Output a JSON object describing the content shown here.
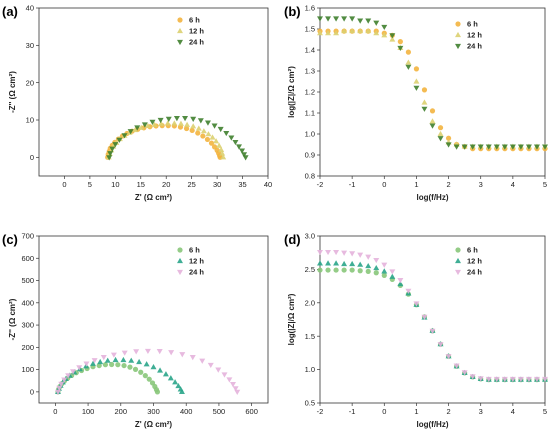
{
  "chart_data": [
    {
      "panel": "(a)",
      "type": "scatter",
      "xlabel": "Z' (Ω cm²)",
      "ylabel": "-Z'' (Ω cm²)",
      "xlim": [
        -5,
        40
      ],
      "ylim": [
        -5,
        40
      ],
      "xticks": [
        "0",
        "5",
        "10",
        "15",
        "20",
        "25",
        "30",
        "35",
        "40"
      ],
      "yticks": [
        "0",
        "10",
        "20",
        "30",
        "40"
      ],
      "legend_position": "top-right",
      "series": [
        {
          "name": "6 h",
          "color": "#f3b43f",
          "marker": "circle",
          "x": [
            8.5,
            8.6,
            8.8,
            9.0,
            9.4,
            9.9,
            10.6,
            11.4,
            12.3,
            13.3,
            14.4,
            15.6,
            16.8,
            18.0,
            19.2,
            20.4,
            21.6,
            22.8,
            24.0,
            25.1,
            26.2,
            27.2,
            28.1,
            28.9,
            29.5,
            30.0,
            30.3,
            30.5,
            30.6
          ],
          "y": [
            0.0,
            0.8,
            1.6,
            2.4,
            3.2,
            4.0,
            4.9,
            5.7,
            6.4,
            7.0,
            7.5,
            7.9,
            8.2,
            8.4,
            8.5,
            8.5,
            8.4,
            8.1,
            7.7,
            7.2,
            6.5,
            5.7,
            4.8,
            3.8,
            2.8,
            1.9,
            1.1,
            0.4,
            0.0
          ]
        },
        {
          "name": "12 h",
          "color": "#dcd070",
          "marker": "triangle-up",
          "x": [
            8.7,
            8.9,
            9.2,
            9.6,
            10.2,
            10.9,
            11.8,
            12.8,
            13.9,
            15.1,
            16.4,
            17.7,
            19.0,
            20.3,
            21.6,
            22.9,
            24.1,
            25.3,
            26.4,
            27.4,
            28.3,
            29.1,
            29.8,
            30.4,
            30.8,
            31.0,
            31.2
          ],
          "y": [
            0.0,
            0.9,
            1.9,
            2.9,
            3.9,
            4.9,
            5.8,
            6.6,
            7.3,
            7.9,
            8.4,
            8.7,
            9.0,
            9.1,
            9.1,
            9.0,
            8.7,
            8.3,
            7.7,
            7.0,
            6.2,
            5.3,
            4.3,
            3.1,
            2.0,
            1.0,
            0.0
          ]
        },
        {
          "name": "24 h",
          "color": "#3f7f2e",
          "marker": "triangle-down",
          "x": [
            8.8,
            9.0,
            9.4,
            10.0,
            10.8,
            11.8,
            13.0,
            14.3,
            15.8,
            17.3,
            18.9,
            20.5,
            22.1,
            23.7,
            25.3,
            26.8,
            28.2,
            29.5,
            30.7,
            31.8,
            32.8,
            33.6,
            34.3,
            34.9,
            35.3,
            35.6
          ],
          "y": [
            0.0,
            1.1,
            2.3,
            3.5,
            4.7,
            5.9,
            7.0,
            8.0,
            8.8,
            9.5,
            10.0,
            10.3,
            10.5,
            10.5,
            10.3,
            9.9,
            9.3,
            8.5,
            7.6,
            6.5,
            5.3,
            4.1,
            2.9,
            1.8,
            0.8,
            0.0
          ]
        }
      ]
    },
    {
      "panel": "(b)",
      "type": "scatter",
      "xlabel": "log(f/Hz)",
      "ylabel": "log(|Z|/Ω cm²)",
      "xlim": [
        -2,
        5
      ],
      "ylim": [
        0.8,
        1.6
      ],
      "xticks": [
        "-2",
        "-1",
        "0",
        "1",
        "2",
        "3",
        "4",
        "5"
      ],
      "yticks": [
        "0.8",
        "0.9",
        "1.0",
        "1.1",
        "1.2",
        "1.3",
        "1.4",
        "1.5",
        "1.6"
      ],
      "legend_position": "top-right",
      "series": [
        {
          "name": "6 h",
          "color": "#f3b43f",
          "marker": "circle",
          "x": [
            -2,
            -1.75,
            -1.5,
            -1.25,
            -1,
            -0.75,
            -0.5,
            -0.25,
            0,
            0.25,
            0.5,
            0.75,
            1,
            1.25,
            1.5,
            1.75,
            2,
            2.25,
            2.5,
            2.75,
            3,
            3.25,
            3.5,
            3.75,
            4,
            4.25,
            4.5,
            4.75,
            5
          ],
          "y": [
            1.49,
            1.49,
            1.49,
            1.49,
            1.49,
            1.49,
            1.49,
            1.49,
            1.48,
            1.47,
            1.44,
            1.39,
            1.31,
            1.21,
            1.11,
            1.03,
            0.98,
            0.95,
            0.94,
            0.93,
            0.93,
            0.93,
            0.93,
            0.93,
            0.93,
            0.93,
            0.93,
            0.93,
            0.93
          ]
        },
        {
          "name": "12 h",
          "color": "#dcd070",
          "marker": "triangle-up",
          "x": [
            -2,
            -1.75,
            -1.5,
            -1.25,
            -1,
            -0.75,
            -0.5,
            -0.25,
            0,
            0.25,
            0.5,
            0.75,
            1,
            1.25,
            1.5,
            1.75,
            2,
            2.25,
            2.5,
            2.75,
            3,
            3.25,
            3.5,
            3.75,
            4,
            4.25,
            4.5,
            4.75,
            5
          ],
          "y": [
            1.48,
            1.48,
            1.48,
            1.49,
            1.49,
            1.49,
            1.49,
            1.48,
            1.47,
            1.45,
            1.41,
            1.34,
            1.25,
            1.15,
            1.06,
            1.0,
            0.96,
            0.95,
            0.94,
            0.94,
            0.94,
            0.94,
            0.94,
            0.94,
            0.94,
            0.94,
            0.94,
            0.94,
            0.94
          ]
        },
        {
          "name": "24 h",
          "color": "#3f7f2e",
          "marker": "triangle-down",
          "x": [
            -2,
            -1.75,
            -1.5,
            -1.25,
            -1,
            -0.75,
            -0.5,
            -0.25,
            0,
            0.25,
            0.5,
            0.75,
            1,
            1.25,
            1.5,
            1.75,
            2,
            2.25,
            2.5,
            2.75,
            3,
            3.25,
            3.5,
            3.75,
            4,
            4.25,
            4.5,
            4.75,
            5
          ],
          "y": [
            1.55,
            1.55,
            1.55,
            1.55,
            1.55,
            1.54,
            1.54,
            1.53,
            1.51,
            1.47,
            1.41,
            1.32,
            1.22,
            1.12,
            1.04,
            0.98,
            0.95,
            0.94,
            0.94,
            0.94,
            0.94,
            0.94,
            0.94,
            0.94,
            0.94,
            0.94,
            0.94,
            0.94,
            0.94
          ]
        }
      ]
    },
    {
      "panel": "(c)",
      "type": "scatter",
      "xlabel": "Z' (Ω cm²)",
      "ylabel": "-Z'' (Ω cm²)",
      "xlim": [
        -50,
        650
      ],
      "ylim": [
        -50,
        700
      ],
      "xticks": [
        "0",
        "100",
        "200",
        "300",
        "400",
        "500",
        "600"
      ],
      "yticks": [
        "0",
        "100",
        "200",
        "300",
        "400",
        "500",
        "600",
        "700"
      ],
      "legend_position": "top-right",
      "series": [
        {
          "name": "6 h",
          "color": "#88c77a",
          "marker": "circle",
          "x": [
            8,
            10,
            14,
            20,
            28,
            38,
            50,
            64,
            80,
            97,
            115,
            134,
            153,
            172,
            191,
            210,
            228,
            245,
            261,
            275,
            287,
            297,
            304,
            309,
            312
          ],
          "y": [
            0,
            12,
            24,
            37,
            50,
            62,
            74,
            86,
            96,
            105,
            113,
            118,
            122,
            123,
            122,
            118,
            111,
            101,
            88,
            73,
            57,
            40,
            24,
            10,
            0
          ]
        },
        {
          "name": "12 h",
          "color": "#2aa58a",
          "marker": "triangle-up",
          "x": [
            8,
            11,
            16,
            23,
            32,
            44,
            58,
            75,
            94,
            115,
            137,
            160,
            184,
            208,
            232,
            256,
            279,
            300,
            320,
            338,
            353,
            366,
            376,
            383,
            387
          ],
          "y": [
            0,
            14,
            28,
            43,
            58,
            73,
            88,
            102,
            115,
            126,
            134,
            140,
            143,
            143,
            140,
            134,
            124,
            111,
            96,
            79,
            61,
            43,
            26,
            11,
            0
          ]
        },
        {
          "name": "24 h",
          "color": "#e4b3dc",
          "marker": "triangle-down",
          "x": [
            8,
            12,
            18,
            27,
            39,
            54,
            73,
            95,
            120,
            148,
            179,
            212,
            247,
            283,
            319,
            354,
            388,
            420,
            449,
            475,
            498,
            517,
            532,
            543,
            551,
            556
          ],
          "y": [
            0,
            18,
            36,
            55,
            74,
            92,
            110,
            127,
            142,
            156,
            167,
            176,
            182,
            184,
            183,
            178,
            169,
            156,
            140,
            121,
            100,
            78,
            56,
            35,
            16,
            0
          ]
        }
      ]
    },
    {
      "panel": "(d)",
      "type": "scatter",
      "xlabel": "log(f/Hz)",
      "ylabel": "log(|Z|/Ω cm²)",
      "xlim": [
        -2,
        5
      ],
      "ylim": [
        0.5,
        3.0
      ],
      "xticks": [
        "-2",
        "-1",
        "0",
        "1",
        "2",
        "3",
        "4",
        "5"
      ],
      "yticks": [
        "0.5",
        "1.0",
        "1.5",
        "2.0",
        "2.5",
        "3.0"
      ],
      "legend_position": "top-right",
      "series": [
        {
          "name": "6 h",
          "color": "#88c77a",
          "marker": "circle",
          "x": [
            -2,
            -1.75,
            -1.5,
            -1.25,
            -1,
            -0.75,
            -0.5,
            -0.25,
            0,
            0.25,
            0.5,
            0.75,
            1,
            1.25,
            1.5,
            1.75,
            2,
            2.25,
            2.5,
            2.75,
            3,
            3.25,
            3.5,
            3.75,
            4,
            4.25,
            4.5,
            4.75,
            5
          ],
          "y": [
            2.49,
            2.49,
            2.49,
            2.49,
            2.49,
            2.48,
            2.47,
            2.45,
            2.41,
            2.35,
            2.26,
            2.13,
            1.97,
            1.79,
            1.58,
            1.38,
            1.2,
            1.05,
            0.95,
            0.89,
            0.86,
            0.85,
            0.85,
            0.85,
            0.85,
            0.85,
            0.85,
            0.85,
            0.85
          ]
        },
        {
          "name": "12 h",
          "color": "#2aa58a",
          "marker": "triangle-up",
          "x": [
            -2,
            -1.75,
            -1.5,
            -1.25,
            -1,
            -0.75,
            -0.5,
            -0.25,
            0,
            0.25,
            0.5,
            0.75,
            1,
            1.25,
            1.5,
            1.75,
            2,
            2.25,
            2.5,
            2.75,
            3,
            3.25,
            3.5,
            3.75,
            4,
            4.25,
            4.5,
            4.75,
            5
          ],
          "y": [
            2.59,
            2.59,
            2.59,
            2.58,
            2.58,
            2.57,
            2.55,
            2.52,
            2.47,
            2.39,
            2.28,
            2.14,
            1.97,
            1.78,
            1.58,
            1.38,
            1.2,
            1.05,
            0.95,
            0.89,
            0.86,
            0.85,
            0.85,
            0.85,
            0.85,
            0.85,
            0.85,
            0.85,
            0.85
          ]
        },
        {
          "name": "24 h",
          "color": "#e4b3dc",
          "marker": "triangle-down",
          "x": [
            -2,
            -1.75,
            -1.5,
            -1.25,
            -1,
            -0.75,
            -0.5,
            -0.25,
            0,
            0.25,
            0.5,
            0.75,
            1,
            1.25,
            1.5,
            1.75,
            2,
            2.25,
            2.5,
            2.75,
            3,
            3.25,
            3.5,
            3.75,
            4,
            4.25,
            4.5,
            4.75,
            5
          ],
          "y": [
            2.76,
            2.76,
            2.76,
            2.75,
            2.74,
            2.72,
            2.69,
            2.64,
            2.57,
            2.47,
            2.34,
            2.18,
            1.99,
            1.79,
            1.58,
            1.38,
            1.2,
            1.06,
            0.96,
            0.9,
            0.87,
            0.86,
            0.86,
            0.86,
            0.86,
            0.86,
            0.86,
            0.86,
            0.86
          ]
        }
      ]
    }
  ]
}
